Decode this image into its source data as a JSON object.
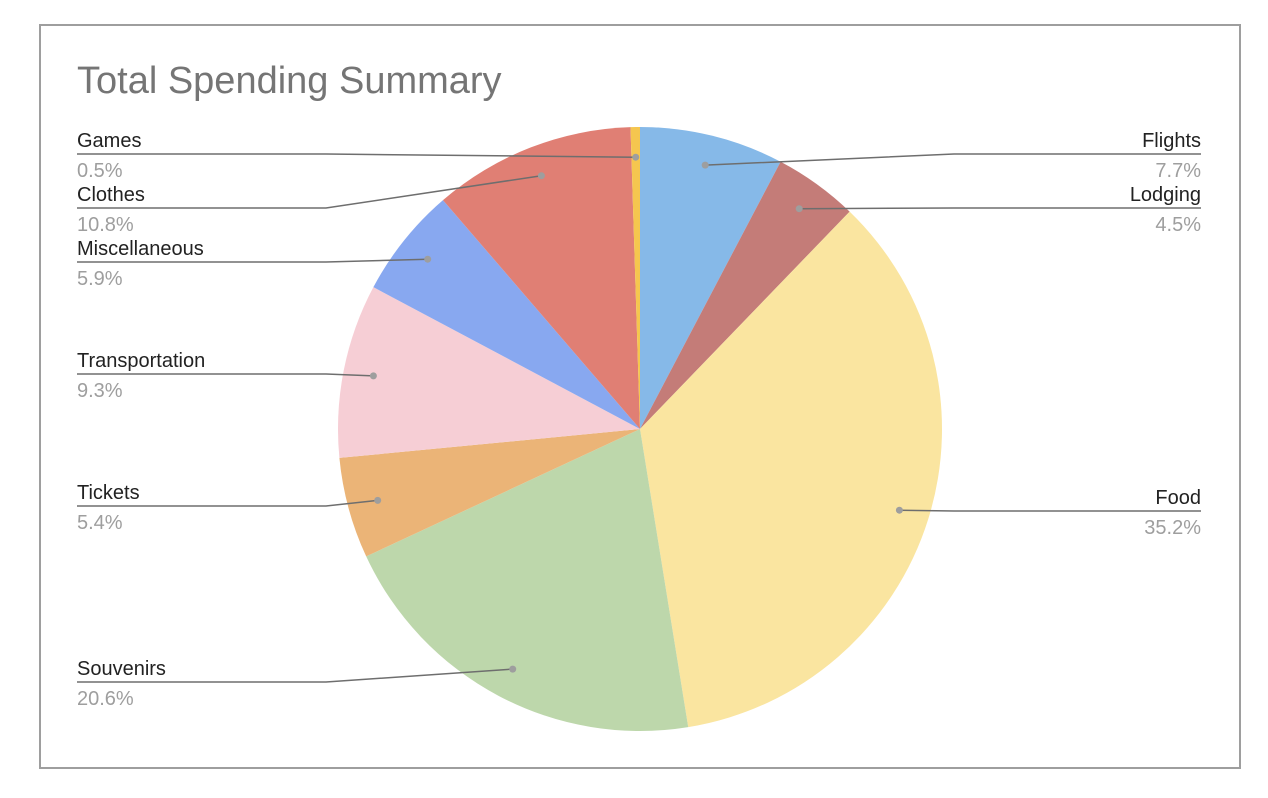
{
  "chart_data": {
    "type": "pie",
    "title": "Total Spending Summary",
    "slices": [
      {
        "label": "Flights",
        "value": 7.7,
        "percent_label": "7.7%",
        "color": "#86b9e8"
      },
      {
        "label": "Lodging",
        "value": 4.5,
        "percent_label": "4.5%",
        "color": "#c47c78"
      },
      {
        "label": "Food",
        "value": 35.2,
        "percent_label": "35.2%",
        "color": "#fae5a0"
      },
      {
        "label": "Souvenirs",
        "value": 20.6,
        "percent_label": "20.6%",
        "color": "#bdd7ab"
      },
      {
        "label": "Tickets",
        "value": 5.4,
        "percent_label": "5.4%",
        "color": "#ebb477"
      },
      {
        "label": "Transportation",
        "value": 9.3,
        "percent_label": "9.3%",
        "color": "#f6ced5"
      },
      {
        "label": "Miscellaneous",
        "value": 5.9,
        "percent_label": "5.9%",
        "color": "#88a8f0"
      },
      {
        "label": "Clothes",
        "value": 10.8,
        "percent_label": "10.8%",
        "color": "#e07f74"
      },
      {
        "label": "Games",
        "value": 0.5,
        "percent_label": "0.5%",
        "color": "#f5c64f"
      }
    ],
    "start_angle": "12 o'clock",
    "direction": "clockwise",
    "legend": "none"
  }
}
